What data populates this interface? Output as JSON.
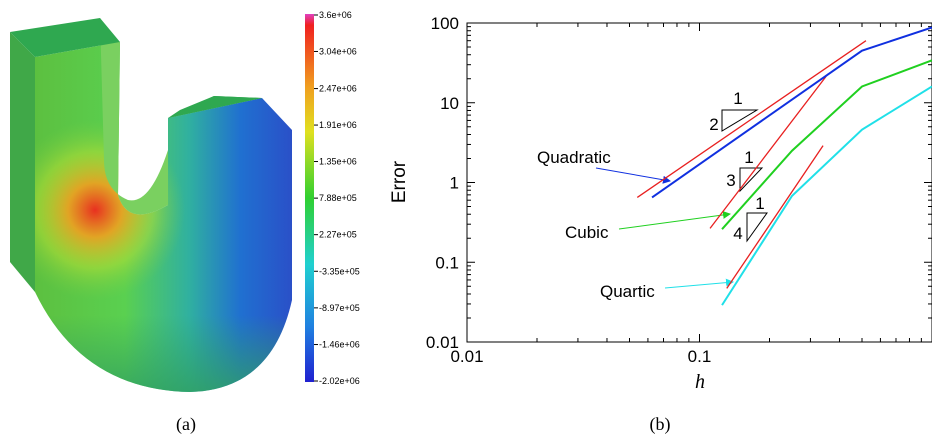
{
  "panel_a": {
    "colorbar": {
      "lim": [
        -2020000,
        3600000
      ],
      "ticks": [
        {
          "value": 3600000,
          "label": "3.6e+06"
        },
        {
          "value": 3040000,
          "label": "3.04e+06"
        },
        {
          "value": 2470000,
          "label": "2.47e+06"
        },
        {
          "value": 1910000,
          "label": "1.91e+06"
        },
        {
          "value": 1350000,
          "label": "1.35e+06"
        },
        {
          "value": 788000,
          "label": "7.88e+05"
        },
        {
          "value": 227000,
          "label": "2.27e+05"
        },
        {
          "value": -335000,
          "label": "-3.35e+05"
        },
        {
          "value": -897000,
          "label": "-8.97e+05"
        },
        {
          "value": -1460000,
          "label": "-1.46e+06"
        },
        {
          "value": -2020000,
          "label": "-2.02e+06"
        }
      ]
    },
    "caption": "(a)"
  },
  "chart_data": {
    "type": "line",
    "xlabel": "h",
    "ylabel": "Error",
    "xscale": "log",
    "yscale": "log",
    "xlim": [
      0.01,
      1
    ],
    "ylim": [
      0.01,
      100
    ],
    "xticks": [
      0.01,
      0.1
    ],
    "yticks": [
      0.01,
      0.1,
      1,
      10,
      100
    ],
    "series": [
      {
        "name": "Quadratic",
        "color": "#1030e0",
        "x": [
          0.0625,
          0.5,
          1
        ],
        "values": [
          0.65,
          45,
          88
        ]
      },
      {
        "name": "Cubic",
        "color": "#20d020",
        "x": [
          0.125,
          0.25,
          0.5,
          1
        ],
        "values": [
          0.26,
          2.5,
          16,
          34
        ]
      },
      {
        "name": "Quartic",
        "color": "#20e0e8",
        "x": [
          0.125,
          0.25,
          0.5,
          1
        ],
        "values": [
          0.029,
          0.68,
          4.6,
          16
        ]
      }
    ],
    "reference_lines": [
      {
        "color": "#e82020",
        "x": [
          0.054,
          0.52
        ],
        "values": [
          0.65,
          60
        ]
      },
      {
        "color": "#e82020",
        "x": [
          0.111,
          0.357
        ],
        "values": [
          0.266,
          23
        ]
      },
      {
        "color": "#e82020",
        "x": [
          0.131,
          0.34
        ],
        "values": [
          0.047,
          2.9
        ]
      }
    ],
    "slope_triangles": [
      {
        "run": 1,
        "rise": 2
      },
      {
        "run": 1,
        "rise": 3
      },
      {
        "run": 1,
        "rise": 4
      }
    ],
    "caption": "(b)"
  }
}
